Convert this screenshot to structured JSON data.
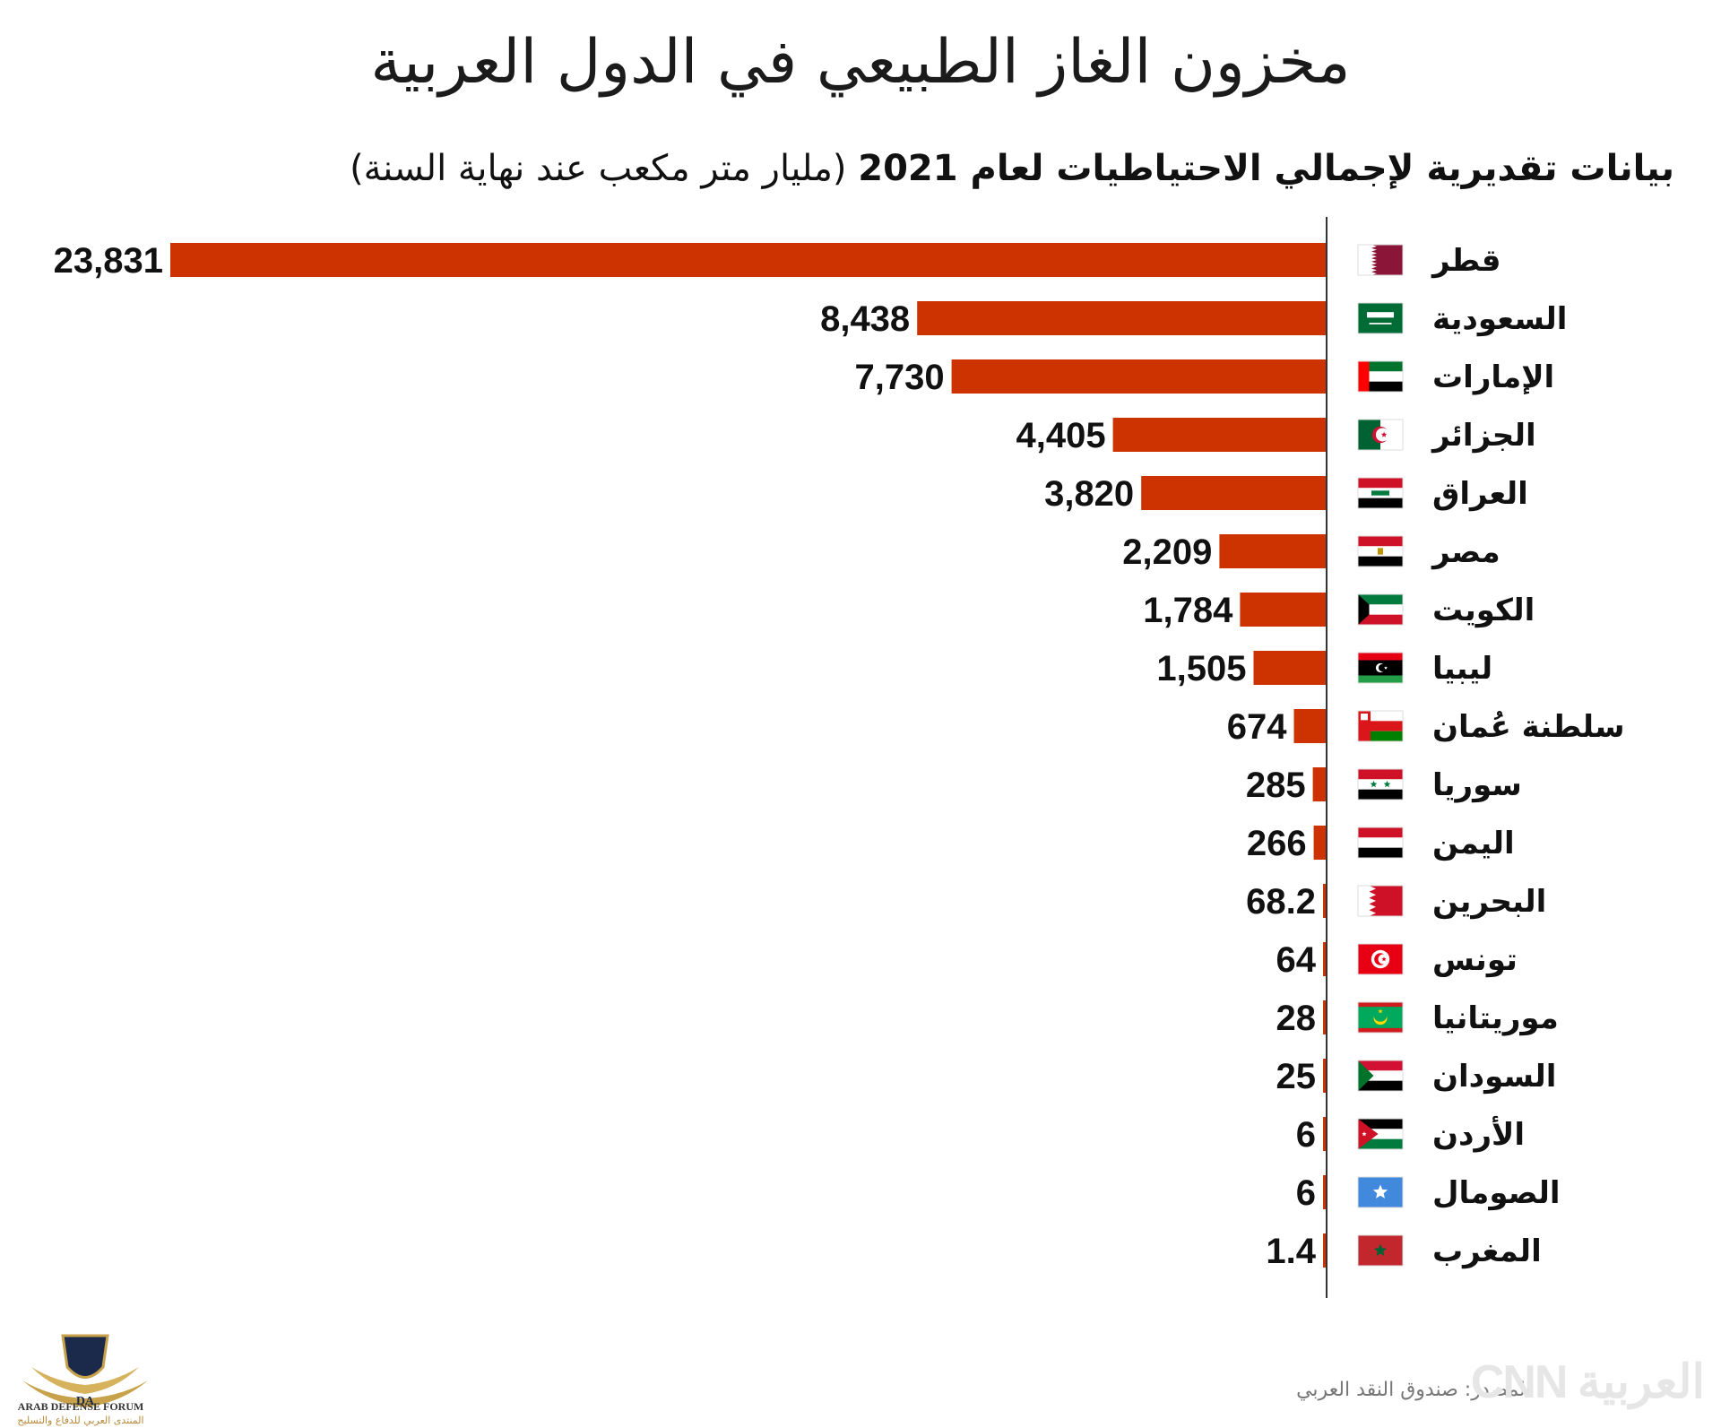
{
  "header": {
    "title": "مخزون الغاز الطبيعي في الدول العربية",
    "subtitle_bold": "بيانات تقديرية لإجمالي الاحتياطيات لعام 2021",
    "subtitle_normal": "(مليار متر مكعب عند نهاية السنة)"
  },
  "footer": {
    "source": "المصدر: صندوق النقد العربي",
    "brand": "CNN العربية",
    "logo_line1": "ARAB DEFENSE FORUM",
    "logo_line2": "المنتدى العربي للدفاع والتسليح",
    "logo_mark": "DA"
  },
  "colors": {
    "bar": "#cc3300",
    "axis": "#333333"
  },
  "chart_data": {
    "type": "bar",
    "orientation": "horizontal",
    "title": "مخزون الغاز الطبيعي في الدول العربية",
    "unit": "مليار متر مكعب",
    "categories": [
      "قطر",
      "السعودية",
      "الإمارات",
      "الجزائر",
      "العراق",
      "مصر",
      "الكويت",
      "ليبيا",
      "سلطنة عُمان",
      "سوريا",
      "اليمن",
      "البحرين",
      "تونس",
      "موريتانيا",
      "السودان",
      "الأردن",
      "الصومال",
      "المغرب"
    ],
    "flags": [
      "qatar",
      "saudi",
      "uae",
      "algeria",
      "iraq",
      "egypt",
      "kuwait",
      "libya",
      "oman",
      "syria",
      "yemen",
      "bahrain",
      "tunisia",
      "mauritania",
      "sudan",
      "jordan",
      "somalia",
      "morocco"
    ],
    "values": [
      23831,
      8438,
      7730,
      4405,
      3820,
      2209,
      1784,
      1505,
      674,
      285,
      266,
      68.2,
      64,
      28,
      25,
      6,
      6,
      1.4
    ],
    "value_labels": [
      "23,831",
      "8,438",
      "7,730",
      "4,405",
      "3,820",
      "2,209",
      "1,784",
      "1,505",
      "674",
      "285",
      "266",
      "68.2",
      "64",
      "28",
      "25",
      "6",
      "6",
      "1.4"
    ],
    "xlim": [
      0,
      23831
    ]
  }
}
